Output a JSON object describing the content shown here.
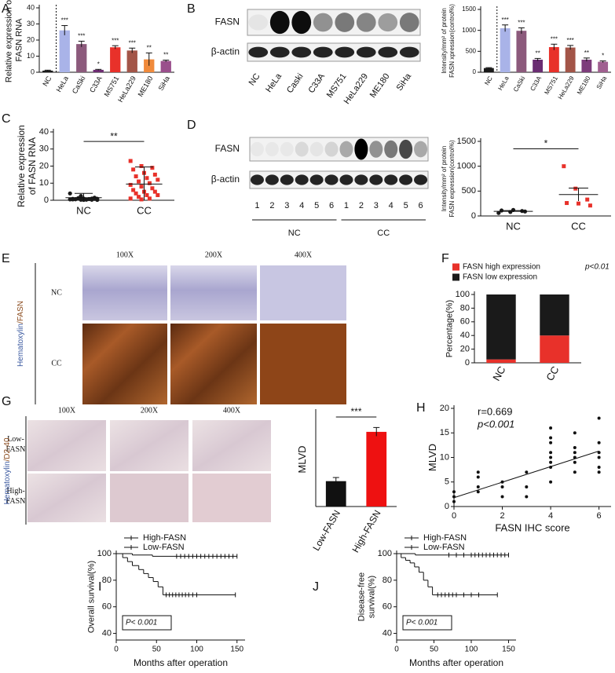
{
  "chart_data": [
    {
      "type": "bar",
      "panel": "A",
      "ylabel": [
        "Relative expression of",
        "FASN RNA"
      ],
      "categories": [
        "NC",
        "HeLa",
        "CaSki",
        "C33A",
        "MS751",
        "HeLa229",
        "ME180",
        "SiHa"
      ],
      "values": [
        1,
        26,
        17.5,
        1.5,
        15.5,
        13.5,
        8,
        7
      ],
      "errors": [
        0.3,
        3,
        1.8,
        0.3,
        1,
        1.5,
        4,
        0.5
      ],
      "colors": [
        "#1a1a1a",
        "#a9b3e8",
        "#8c5a7c",
        "#6e2c73",
        "#e8312a",
        "#a35548",
        "#f08a3b",
        "#9a4f8c"
      ],
      "significance": [
        null,
        "***",
        "***",
        "*",
        "***",
        "***",
        "**",
        "**"
      ],
      "ylim": [
        0,
        40
      ],
      "yticks": [
        0,
        10,
        20,
        30,
        40
      ]
    },
    {
      "type": "bar",
      "ylabel": [
        "Intensity/mm² of protein",
        "FASN xpression(control%)"
      ],
      "categories": [
        "NC",
        "HeLa",
        "CaSki",
        "C33A",
        "MS751",
        "HeLa229",
        "ME180",
        "SiHa"
      ],
      "values": [
        100,
        1050,
        990,
        300,
        600,
        590,
        300,
        250
      ],
      "errors": [
        10,
        80,
        70,
        30,
        70,
        50,
        40,
        20
      ],
      "colors": [
        "#1a1a1a",
        "#a9b3e8",
        "#8c5a7c",
        "#6a2d72",
        "#e8312a",
        "#a35548",
        "#7d3c7b",
        "#a06090"
      ],
      "significance": [
        null,
        "***",
        "***",
        "**",
        "***",
        "***",
        "**",
        "*"
      ],
      "ylim": [
        0,
        1500
      ],
      "yticks": [
        0,
        500,
        1000,
        1500
      ]
    },
    {
      "type": "dot",
      "panel": "C",
      "ylabel": [
        "Relative expression",
        "of FASN RNA"
      ],
      "categories": [
        "NC",
        "CC"
      ],
      "colors": [
        "#1a1a1a",
        "#e8312a"
      ],
      "markers": [
        "circle",
        "square"
      ],
      "points": [
        [
          0.5,
          0.3,
          1,
          0.8,
          0.2,
          1.5,
          0.6,
          0.4,
          0.9,
          1.2,
          0.7,
          4,
          2.5,
          0.3,
          0.5,
          1,
          0.8,
          0.6,
          0.4,
          0.2
        ],
        [
          23,
          20,
          19,
          18,
          16,
          15,
          14,
          13,
          12,
          11,
          10,
          9,
          8,
          7,
          6,
          5,
          5,
          4,
          3,
          3,
          2,
          1,
          1,
          0.5
        ]
      ],
      "means": [
        1.5,
        9.5
      ],
      "errors": [
        2.5,
        10
      ],
      "significance": "**",
      "ylim": [
        0,
        40
      ],
      "yticks": [
        0,
        10,
        20,
        30,
        40
      ]
    },
    {
      "type": "dot",
      "ylabel": [
        "Intensity/mm² of protein",
        "FASN expression(control%)"
      ],
      "categories": [
        "NC",
        "CC"
      ],
      "colors": [
        "#1a1a1a",
        "#e8312a"
      ],
      "markers": [
        "circle",
        "square"
      ],
      "points": [
        [
          60,
          80,
          100,
          110,
          120,
          90
        ],
        [
          1000,
          550,
          330,
          260,
          250,
          210
        ]
      ],
      "means": [
        93,
        430
      ],
      "errors": [
        15,
        130
      ],
      "significance": "*",
      "ylim": [
        0,
        1500
      ],
      "yticks": [
        0,
        500,
        1000,
        1500
      ]
    },
    {
      "type": "stacked_bar",
      "panel": "F",
      "ylabel": [
        "Percentage(%)"
      ],
      "annotation": "p<0.01",
      "categories": [
        "NC",
        "CC"
      ],
      "series": [
        {
          "name": "FASN high expression",
          "color": "#e8312a",
          "values": [
            5,
            40
          ]
        },
        {
          "name": "FASN low expression",
          "color": "#1a1a1a",
          "values": [
            95,
            60
          ]
        }
      ],
      "ylim": [
        0,
        100
      ],
      "yticks": [
        0,
        20,
        40,
        60,
        80,
        100
      ]
    },
    {
      "type": "bar",
      "ylabel": [
        "MLVD"
      ],
      "categories": [
        "Low-FASN",
        "High-FASN"
      ],
      "values": [
        3.5,
        10.3
      ],
      "errors": [
        0.5,
        0.6
      ],
      "colors": [
        "#111111",
        "#ee1111"
      ],
      "bracket": "***",
      "ylim": [
        0,
        13
      ]
    },
    {
      "type": "scatter",
      "panel": "H",
      "xlabel": "FASN IHC score",
      "ylabel": [
        "MLVD"
      ],
      "annotations": [
        "r=0.669",
        "p<0.001"
      ],
      "x": [
        0,
        0,
        0,
        1,
        1,
        1,
        1,
        2,
        2,
        2,
        3,
        3,
        3,
        4,
        4,
        4,
        4,
        4,
        4,
        4,
        4,
        5,
        5,
        5,
        5,
        5,
        5,
        6,
        6,
        6,
        6,
        6,
        6
      ],
      "y": [
        1,
        2,
        3,
        3,
        4,
        6,
        7,
        2,
        4,
        5,
        2,
        4,
        7,
        5,
        8,
        9,
        10,
        11,
        13,
        14,
        16,
        7,
        9,
        10,
        11,
        12,
        15,
        7,
        8,
        10,
        11,
        13,
        18
      ],
      "trendline": {
        "x": [
          0,
          6
        ],
        "y": [
          1.8,
          11.3
        ]
      },
      "xlim": [
        0,
        6.5
      ],
      "xticks": [
        0,
        2,
        4,
        6
      ],
      "ylim": [
        0,
        20
      ],
      "yticks": [
        0,
        5,
        10,
        15,
        20
      ]
    },
    {
      "type": "survival",
      "panel": "I",
      "ylabel": [
        "Overall survival(%)"
      ],
      "xlabel": "Months after operation",
      "annotation": "P< 0.001",
      "series": [
        {
          "name": "High-FASN",
          "color": "#d42a2a",
          "x": [
            0,
            8,
            14,
            20,
            28,
            34,
            40,
            46,
            52,
            58,
            148
          ],
          "y": [
            100,
            97,
            94,
            91,
            88,
            85,
            82,
            79,
            75,
            69,
            69
          ],
          "censored": [
            62,
            66,
            70,
            74,
            78,
            82,
            86,
            90,
            95,
            100,
            148
          ]
        },
        {
          "name": "Low-FASN",
          "color": "#111111",
          "x": [
            0,
            20,
            45,
            150
          ],
          "y": [
            100,
            99,
            98,
            98
          ],
          "censored": [
            75,
            80,
            85,
            90,
            95,
            100,
            105,
            110,
            115,
            120,
            125,
            130,
            135,
            140,
            145,
            150
          ]
        }
      ],
      "xlim": [
        0,
        160
      ],
      "xticks": [
        0,
        50,
        100,
        150
      ],
      "ylim": [
        35,
        100
      ],
      "yticks": [
        40,
        60,
        80,
        100
      ]
    },
    {
      "type": "survival",
      "panel": "J",
      "ylabel": [
        "Disease-free",
        "survival(%)"
      ],
      "xlabel": "Months after operation",
      "annotation": "P< 0.001",
      "series": [
        {
          "name": "High-FASN",
          "color": "#d42a2a",
          "x": [
            0,
            6,
            12,
            18,
            24,
            30,
            36,
            42,
            48,
            135
          ],
          "y": [
            100,
            97,
            95,
            93,
            90,
            86,
            80,
            75,
            69,
            69
          ],
          "censored": [
            55,
            60,
            65,
            70,
            75,
            80,
            90,
            100,
            110,
            135
          ]
        },
        {
          "name": "Low-FASN",
          "color": "#111111",
          "x": [
            0,
            25,
            150
          ],
          "y": [
            100,
            99,
            99
          ],
          "censored": [
            70,
            80,
            90,
            100,
            105,
            110,
            115,
            120,
            125,
            130,
            135,
            140,
            145,
            150
          ]
        }
      ],
      "xlim": [
        0,
        160
      ],
      "xticks": [
        0,
        50,
        100,
        150
      ],
      "ylim": [
        35,
        100
      ],
      "yticks": [
        40,
        60,
        80,
        100
      ]
    }
  ],
  "blots": [
    {
      "panel": "B",
      "rows": [
        "FASN",
        "β-actin"
      ],
      "lanes": [
        "NC",
        "HeLa",
        "Caski",
        "C33A",
        "MS751",
        "HeLa229",
        "ME180",
        "SiHa"
      ]
    },
    {
      "panel": "D",
      "rows": [
        "FASN",
        "β-actin"
      ],
      "lanes": [
        1,
        2,
        3,
        4,
        5,
        6,
        1,
        2,
        3,
        4,
        5,
        6
      ],
      "groups": [
        "NC",
        "CC"
      ]
    }
  ],
  "ihc": [
    {
      "panel": "E",
      "stain": [
        "Hematoxylin",
        "/FASN"
      ],
      "magnifications": [
        "100X",
        "200X",
        "400X"
      ],
      "rows": [
        [
          "NC"
        ],
        [
          "CC"
        ]
      ]
    },
    {
      "panel": "G",
      "stain": [
        "Hematoxylin",
        "/D2-40"
      ],
      "magnifications": [
        "100X",
        "200X",
        "400X"
      ],
      "rows": [
        [
          "Low-",
          "FASN"
        ],
        [
          "High-",
          "FASN"
        ]
      ]
    }
  ]
}
